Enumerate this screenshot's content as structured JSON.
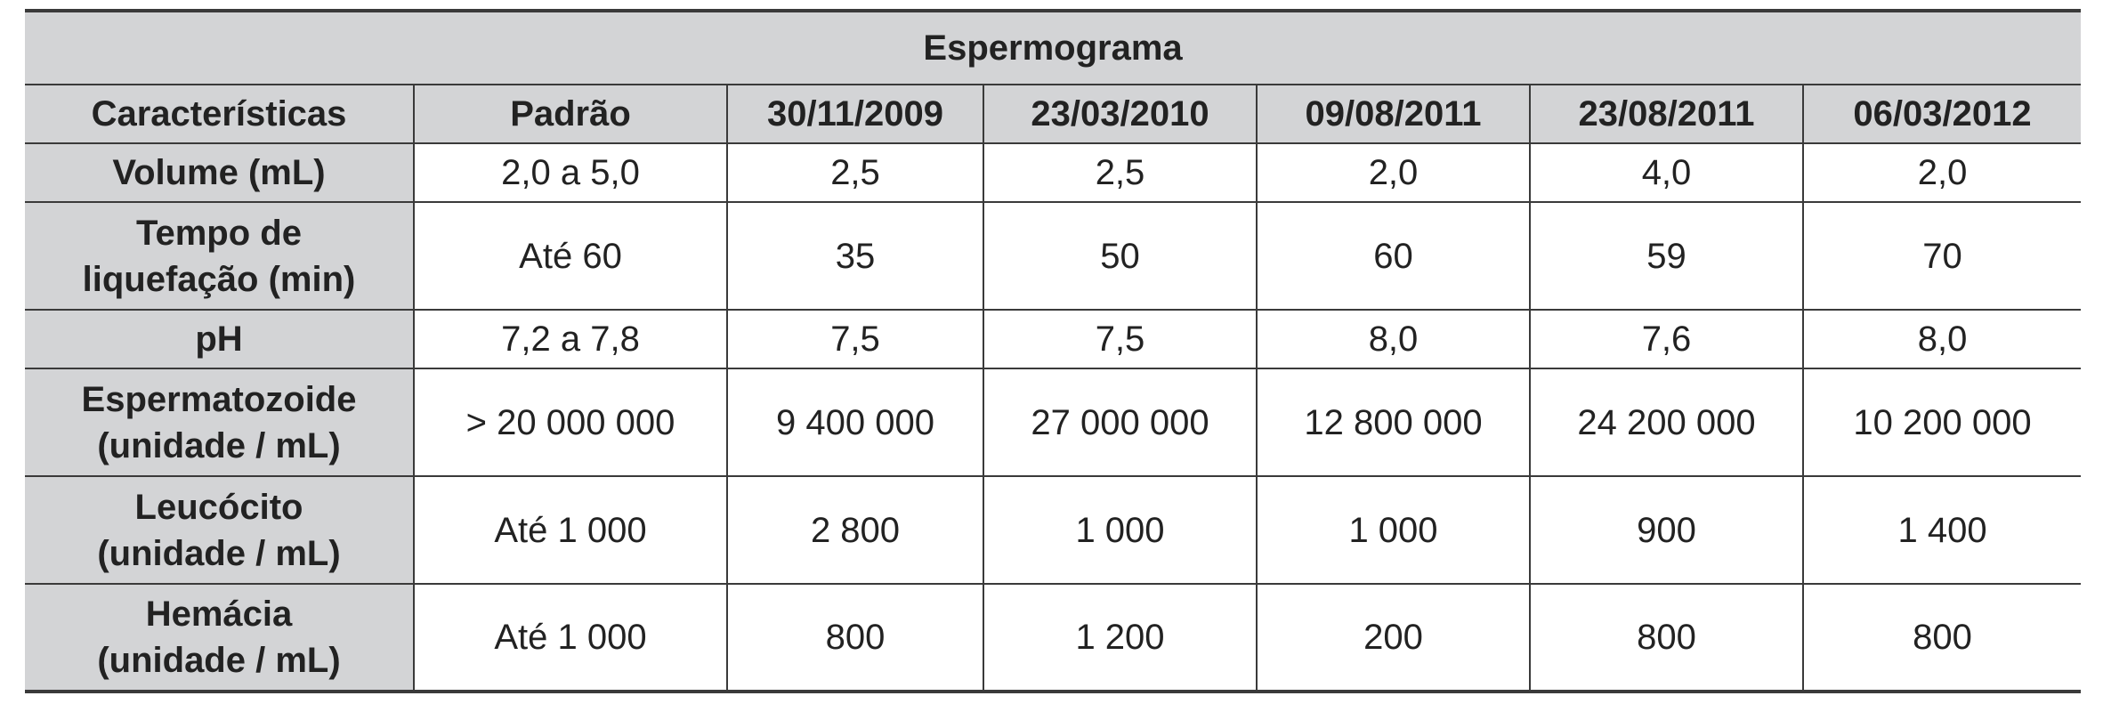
{
  "table": {
    "title": "Espermograma",
    "headers": [
      "Características",
      "Padrão",
      "30/11/2009",
      "23/03/2010",
      "09/08/2011",
      "23/08/2011",
      "06/03/2012"
    ],
    "rows": [
      {
        "label_lines": [
          "Volume (mL)"
        ],
        "values": [
          "2,0 a 5,0",
          "2,5",
          "2,5",
          "2,0",
          "4,0",
          "2,0"
        ]
      },
      {
        "label_lines": [
          "Tempo de",
          "liquefação (min)"
        ],
        "values": [
          "Até 60",
          "35",
          "50",
          "60",
          "59",
          "70"
        ]
      },
      {
        "label_lines": [
          "pH"
        ],
        "values": [
          "7,2 a 7,8",
          "7,5",
          "7,5",
          "8,0",
          "7,6",
          "8,0"
        ]
      },
      {
        "label_lines": [
          "Espermatozoide",
          "(unidade / mL)"
        ],
        "values": [
          "> 20 000 000",
          "9 400 000",
          "27 000 000",
          "12 800 000",
          "24 200 000",
          "10 200 000"
        ]
      },
      {
        "label_lines": [
          "Leucócito",
          "(unidade / mL)"
        ],
        "values": [
          "Até 1 000",
          "2 800",
          "1 000",
          "1 000",
          "900",
          "1 400"
        ]
      },
      {
        "label_lines": [
          "Hemácia",
          "(unidade / mL)"
        ],
        "values": [
          "Até 1 000",
          "800",
          "1 200",
          "200",
          "800",
          "800"
        ]
      }
    ]
  },
  "colors": {
    "header_background": "#d3d4d6",
    "grid_lines": "#3a3a3a",
    "text": "#222222"
  }
}
